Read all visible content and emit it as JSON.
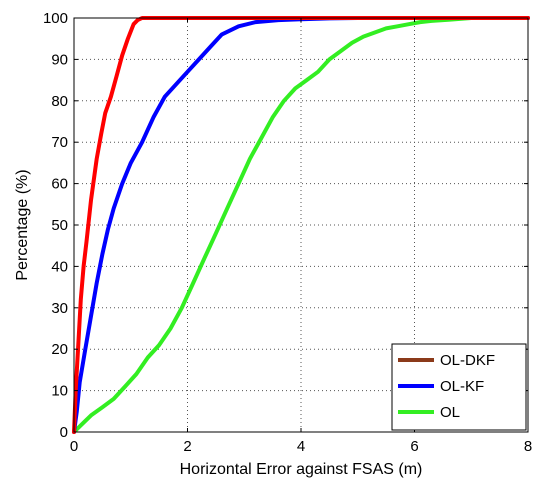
{
  "chart_data": {
    "type": "line",
    "title": "",
    "xlabel": "Horizontal Error against FSAS (m)",
    "ylabel": "Percentage (%)",
    "xlim": [
      0,
      8
    ],
    "ylim": [
      0,
      100
    ],
    "xticks": [
      0,
      2,
      4,
      6,
      8
    ],
    "yticks": [
      0,
      10,
      20,
      30,
      40,
      50,
      60,
      70,
      80,
      90,
      100
    ],
    "grid": true,
    "legend_position": "bottom-right",
    "series": [
      {
        "name": "OL-DKF",
        "color": "#ff0000",
        "legend_color": "#8b3a1a",
        "x": [
          0,
          0.03,
          0.08,
          0.12,
          0.17,
          0.22,
          0.3,
          0.4,
          0.48,
          0.55,
          0.65,
          0.75,
          0.85,
          0.95,
          1.05,
          1.12,
          1.2,
          1.4,
          2.0,
          3.0,
          4.0,
          6.0,
          8.0
        ],
        "y": [
          0,
          10,
          22,
          32,
          40,
          46,
          56,
          66,
          72,
          77,
          81,
          86,
          91,
          95,
          98.5,
          99.5,
          100,
          100,
          100,
          100,
          100,
          100,
          100
        ]
      },
      {
        "name": "OL-KF",
        "color": "#0000ff",
        "x": [
          0,
          0.05,
          0.1,
          0.2,
          0.3,
          0.4,
          0.5,
          0.6,
          0.7,
          0.85,
          1.0,
          1.2,
          1.4,
          1.6,
          1.8,
          2.0,
          2.2,
          2.4,
          2.6,
          2.9,
          3.2,
          3.6,
          4.0,
          4.5,
          5.0,
          6.0,
          7.0,
          8.0
        ],
        "y": [
          0,
          5,
          12,
          20,
          28,
          36,
          43,
          49,
          54,
          60,
          65,
          70,
          76,
          81,
          84,
          87,
          90,
          93,
          96,
          98,
          99,
          99.5,
          99.7,
          99.9,
          100,
          100,
          100,
          100
        ]
      },
      {
        "name": "OL",
        "color": "#33ee22",
        "x": [
          0,
          0.15,
          0.3,
          0.5,
          0.7,
          0.9,
          1.1,
          1.3,
          1.5,
          1.7,
          1.9,
          2.1,
          2.3,
          2.5,
          2.7,
          2.9,
          3.1,
          3.3,
          3.5,
          3.7,
          3.9,
          4.1,
          4.3,
          4.5,
          4.7,
          4.9,
          5.1,
          5.3,
          5.5,
          5.7,
          5.9,
          6.1,
          6.3,
          6.6,
          7.0,
          8.0
        ],
        "y": [
          0,
          2,
          4,
          6,
          8,
          11,
          14,
          18,
          21,
          25,
          30,
          36,
          42,
          48,
          54,
          60,
          66,
          71,
          76,
          80,
          83,
          85,
          87,
          90,
          92,
          94,
          95.5,
          96.5,
          97.5,
          98,
          98.5,
          99,
          99.3,
          99.6,
          100,
          100
        ]
      }
    ]
  }
}
